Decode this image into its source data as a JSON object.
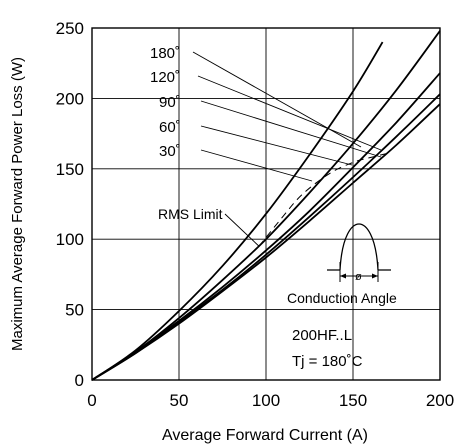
{
  "chart_data": {
    "type": "line",
    "title": "",
    "xlabel": "Average Forward Current (A)",
    "ylabel": "Maximum Average Forward Power Loss (W)",
    "xlim": [
      0,
      200
    ],
    "ylim": [
      0,
      250
    ],
    "x_ticks": [
      0,
      50,
      100,
      150,
      200
    ],
    "y_ticks": [
      0,
      50,
      100,
      150,
      200,
      250
    ],
    "grid": true,
    "series": [
      {
        "name": "180°",
        "x": [
          0,
          25,
          50,
          75,
          100,
          125,
          150,
          175,
          200
        ],
        "y": [
          0,
          19,
          40,
          63,
          87,
          113,
          140,
          167,
          196
        ]
      },
      {
        "name": "120°",
        "x": [
          0,
          25,
          50,
          75,
          100,
          125,
          150,
          175,
          200
        ],
        "y": [
          0,
          19,
          41,
          64,
          89,
          116,
          144,
          173,
          203
        ]
      },
      {
        "name": "90°",
        "x": [
          0,
          25,
          50,
          75,
          100,
          125,
          150,
          175,
          200
        ],
        "y": [
          0,
          20,
          42,
          66,
          92,
          120,
          151,
          183,
          218
        ]
      },
      {
        "name": "60°",
        "x": [
          0,
          25,
          50,
          75,
          100,
          125,
          150,
          175,
          200
        ],
        "y": [
          0,
          20,
          44,
          71,
          100,
          133,
          168,
          206,
          248
        ]
      },
      {
        "name": "30°",
        "x": [
          0,
          25,
          50,
          75,
          100,
          125,
          150,
          167
        ],
        "y": [
          0,
          21,
          49,
          81,
          118,
          160,
          205,
          240
        ]
      }
    ],
    "rms_limit": {
      "label": "RMS Limit",
      "x": [
        96,
        109,
        121,
        137,
        151,
        160,
        170
      ],
      "y": [
        95,
        115,
        132,
        147,
        155,
        158,
        161
      ]
    },
    "annotations": {
      "conduction_angle": "Conduction Angle",
      "phi": "ø",
      "device": "200HF..L",
      "tj": "Tj = 180˚C"
    },
    "curve_labels": [
      "180˚",
      "120˚",
      "90˚",
      "60˚",
      "30˚"
    ]
  }
}
